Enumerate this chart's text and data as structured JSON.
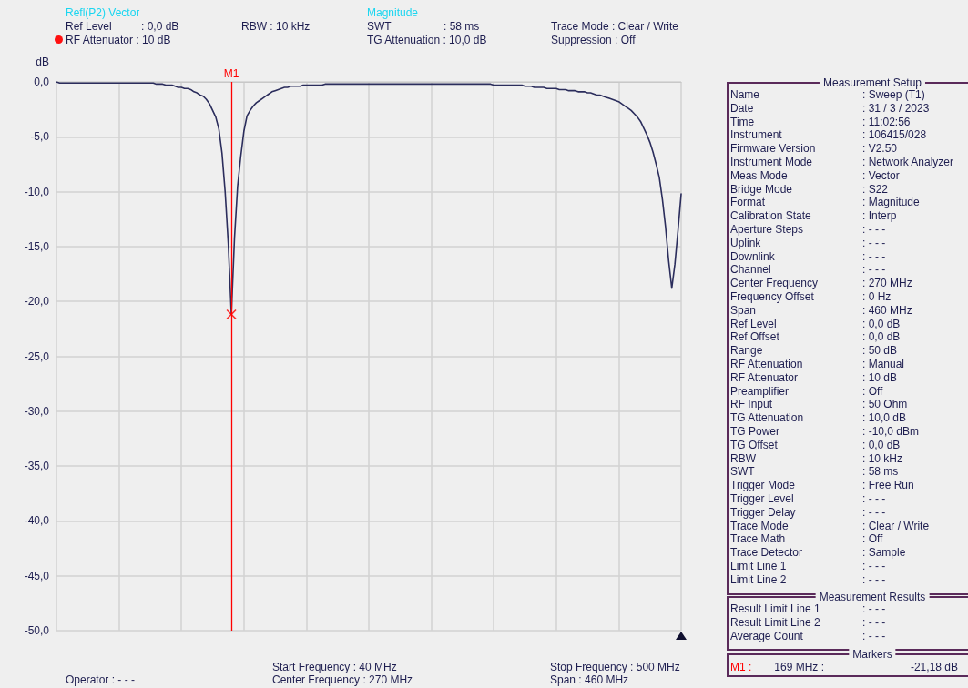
{
  "chart_data": {
    "type": "line",
    "ylabel": "dB",
    "categories": [
      null,
      null,
      null,
      null,
      null,
      null,
      null,
      null,
      null,
      null,
      null,
      null,
      null,
      null,
      null,
      null,
      null,
      null,
      null,
      null,
      null,
      null,
      null,
      null,
      null,
      null,
      null,
      null,
      null,
      null,
      null,
      null,
      null,
      null,
      null,
      null,
      null,
      null,
      null,
      null,
      null,
      null,
      null,
      null,
      null,
      null,
      null,
      null,
      null,
      null,
      null,
      null,
      null,
      null,
      null,
      null,
      null,
      null,
      null,
      null,
      null,
      null,
      null,
      null,
      null,
      null,
      null,
      null,
      null,
      null,
      null,
      null,
      null,
      null,
      null,
      null,
      null,
      null,
      null,
      null,
      null,
      null,
      null,
      null,
      null,
      null,
      null,
      null,
      null,
      null,
      null,
      null,
      null,
      null,
      null,
      null,
      null,
      null,
      null,
      null,
      null,
      null,
      null,
      null,
      null,
      null,
      null,
      null,
      null,
      null,
      null,
      null,
      null,
      null,
      null,
      null,
      null,
      null,
      null,
      null,
      null,
      null,
      null,
      null,
      null,
      null,
      null,
      null,
      null,
      null,
      null,
      null,
      null,
      null,
      null,
      null,
      null,
      null,
      null,
      null,
      null,
      null,
      null,
      null,
      null,
      null,
      null,
      null,
      null,
      null,
      null,
      null,
      null,
      null,
      null,
      null,
      null,
      null,
      null,
      null,
      null,
      null,
      null,
      null,
      null,
      null,
      null,
      null,
      null,
      null,
      null,
      null,
      null,
      null,
      null,
      null,
      null,
      null,
      null,
      null,
      null,
      null,
      null,
      null,
      null,
      null,
      null,
      null,
      null,
      null,
      null,
      null,
      null,
      null,
      null,
      null,
      null,
      null,
      null,
      null,
      null
    ],
    "series": [
      {
        "color": "#2b2d5c",
        "values": [
          0,
          -0.1,
          -0.1,
          -0.1,
          -0.1,
          -0.1,
          -0.1,
          -0.1,
          -0.1,
          -0.1,
          -0.1,
          -0.1,
          -0.1,
          -0.1,
          -0.1,
          -0.1,
          -0.1,
          -0.1,
          -0.1,
          -0.1,
          -0.1,
          -0.1,
          -0.1,
          -0.1,
          -0.1,
          -0.1,
          -0.1,
          -0.1,
          -0.1,
          -0.1,
          -0.1,
          -0.1,
          -0.2,
          -0.2,
          -0.2,
          -0.3,
          -0.3,
          -0.3,
          -0.4,
          -0.5,
          -0.5,
          -0.6,
          -0.6,
          -0.7,
          -0.9,
          -1,
          -1.2,
          -1.3,
          -1.6,
          -2,
          -2.6,
          -3.2,
          -4.3,
          -6.5,
          -10,
          -14.7,
          -21.18,
          -14.2,
          -9.5,
          -6.8,
          -4.5,
          -3.1,
          -2.6,
          -2.2,
          -1.9,
          -1.7,
          -1.5,
          -1.3,
          -1.1,
          -0.9,
          -0.8,
          -0.7,
          -0.6,
          -0.5,
          -0.5,
          -0.4,
          -0.4,
          -0.4,
          -0.4,
          -0.3,
          -0.3,
          -0.3,
          -0.3,
          -0.3,
          -0.3,
          -0.3,
          -0.2,
          -0.2,
          -0.2,
          -0.2,
          -0.2,
          -0.2,
          -0.2,
          -0.2,
          -0.2,
          -0.2,
          -0.2,
          -0.2,
          -0.2,
          -0.2,
          -0.2,
          -0.2,
          -0.2,
          -0.2,
          -0.2,
          -0.2,
          -0.2,
          -0.2,
          -0.2,
          -0.2,
          -0.2,
          -0.2,
          -0.2,
          -0.2,
          -0.2,
          -0.2,
          -0.2,
          -0.2,
          -0.2,
          -0.2,
          -0.2,
          -0.2,
          -0.2,
          -0.2,
          -0.2,
          -0.2,
          -0.2,
          -0.2,
          -0.2,
          -0.2,
          -0.2,
          -0.2,
          -0.2,
          -0.2,
          -0.2,
          -0.2,
          -0.2,
          -0.2,
          -0.2,
          -0.2,
          -0.3,
          -0.3,
          -0.3,
          -0.3,
          -0.3,
          -0.3,
          -0.3,
          -0.3,
          -0.3,
          -0.3,
          -0.4,
          -0.4,
          -0.4,
          -0.5,
          -0.5,
          -0.5,
          -0.5,
          -0.6,
          -0.6,
          -0.6,
          -0.6,
          -0.7,
          -0.7,
          -0.7,
          -0.8,
          -0.8,
          -0.8,
          -0.9,
          -0.9,
          -0.9,
          -1,
          -1,
          -1.1,
          -1.2,
          -1.2,
          -1.3,
          -1.4,
          -1.5,
          -1.6,
          -1.7,
          -1.8,
          -2,
          -2.2,
          -2.4,
          -2.6,
          -2.9,
          -3.2,
          -3.6,
          -4.2,
          -4.8,
          -5.5,
          -6.4,
          -7.5,
          -8.7,
          -10.7,
          -13.2,
          -16.3,
          -18.8,
          -16.6,
          -13.5,
          -10.2
        ]
      },
      {
        "type": "scatter",
        "name": "M1",
        "color": "#ff0000",
        "marker": "cross",
        "values": [
          null,
          null,
          null,
          null,
          null,
          null,
          null,
          null,
          null,
          null,
          null,
          null,
          null,
          null,
          null,
          null,
          null,
          null,
          null,
          null,
          null,
          null,
          null,
          null,
          null,
          null,
          null,
          null,
          null,
          null,
          null,
          null,
          null,
          null,
          null,
          null,
          null,
          null,
          null,
          null,
          null,
          null,
          null,
          null,
          null,
          null,
          null,
          null,
          null,
          null,
          null,
          null,
          null,
          null,
          null,
          null,
          -21.18,
          null,
          null,
          null,
          null,
          null,
          null,
          null,
          null,
          null,
          null,
          null,
          null,
          null,
          null,
          null,
          null,
          null,
          null,
          null,
          null,
          null,
          null,
          null,
          null,
          null,
          null,
          null,
          null,
          null,
          null,
          null,
          null,
          null,
          null,
          null,
          null,
          null,
          null,
          null,
          null,
          null,
          null,
          null,
          null,
          null,
          null,
          null,
          null,
          null,
          null,
          null,
          null,
          null,
          null,
          null,
          null,
          null,
          null,
          null,
          null,
          null,
          null,
          null,
          null,
          null,
          null,
          null,
          null,
          null,
          null,
          null,
          null,
          null,
          null,
          null,
          null,
          null,
          null,
          null,
          null,
          null,
          null,
          null,
          null,
          null,
          null,
          null,
          null,
          null,
          null,
          null,
          null,
          null,
          null,
          null,
          null,
          null,
          null,
          null,
          null,
          null,
          null,
          null,
          null,
          null,
          null,
          null,
          null,
          null,
          null,
          null,
          null,
          null,
          null,
          null,
          null,
          null,
          null,
          null,
          null,
          null,
          null,
          null,
          null,
          null,
          null,
          null,
          null,
          null,
          null,
          null,
          null,
          null,
          null,
          null,
          null,
          null,
          null,
          null,
          null,
          null,
          null,
          null,
          null
        ]
      }
    ],
    "ylim": [
      -50,
      0
    ],
    "yticks": [
      {
        "value": -50,
        "label": "-50,0"
      },
      {
        "value": -45,
        "label": "-45,0"
      },
      {
        "value": -40,
        "label": "-40,0"
      },
      {
        "value": -35,
        "label": "-35,0"
      },
      {
        "value": -30,
        "label": "-30,0"
      },
      {
        "value": -25,
        "label": "-25,0"
      },
      {
        "value": -20,
        "label": "-20,0"
      },
      {
        "value": -15,
        "label": "-15,0"
      },
      {
        "value": -10,
        "label": "-10,0"
      },
      {
        "value": -5,
        "label": "-5,0"
      },
      {
        "value": 0,
        "label": "0,0"
      }
    ],
    "tick_labels": "y",
    "grid": true,
    "marker": "none",
    "line_style": "solid",
    "annotations": [
      "Refl(P2) Vector",
      "Ref Level",
      ": 0,0 dB",
      "RF Attenuator : 10 dB",
      "RBW : 10 kHz",
      "Magnitude",
      "SWT",
      ": 58 ms",
      "TG Attenuation : 10,0 dB",
      "Trace Mode : Clear / Write",
      "Suppression : Off",
      "Start Frequency : 40 MHz",
      "Center Frequency : 270 MHz",
      "Stop Frequency : 500 MHz",
      "Span : 460 MHz",
      "Operator : - - -",
      "Measurement Setup",
      "Name",
      ": Sweep (T1)",
      "Date",
      ": 31 / 3 / 2023",
      "Time",
      ": 11:02:56",
      "Instrument",
      ": 106415/028",
      "Firmware Version",
      ": V2.50",
      "Instrument Mode",
      ": Network Analyzer",
      "Meas Mode",
      ": Vector",
      "Bridge Mode",
      ": S22",
      "Format",
      ": Magnitude",
      "Calibration State",
      ": Interp",
      "Aperture Steps",
      ": - - -",
      "Uplink",
      ": - - -",
      "Downlink",
      ": - - -",
      "Channel",
      ": - - -",
      "Center Frequency",
      ": 270 MHz",
      "Frequency Offset",
      ": 0 Hz",
      "Span",
      ": 460 MHz",
      "Ref Level",
      ": 0,0 dB",
      "Ref Offset",
      ": 0,0 dB",
      "Range",
      ": 50 dB",
      "RF Attenuation",
      ": Manual",
      "RF Attenuator",
      ": 10 dB",
      "Preamplifier",
      ": Off",
      "RF Input",
      ": 50 Ohm",
      "TG Attenuation",
      ": 10,0 dB",
      "TG Power",
      ": -10,0 dBm",
      "TG Offset",
      ": 0,0 dB",
      "RBW",
      ": 10 kHz",
      "SWT",
      ": 58 ms",
      "Trigger Mode",
      ": Free Run",
      "Trigger Level",
      ": - - -",
      "Trigger Delay",
      ": - - -",
      "Trace Mode",
      ": Clear / Write",
      "Trace Math",
      ": Off",
      "Trace Detector",
      ": Sample",
      "Limit Line 1",
      ": - - -",
      "Limit Line 2",
      ": - - -",
      "Measurement Results",
      "Result Limit Line 1",
      ": - - -",
      "Result Limit Line 2",
      ": - - -",
      "Average Count",
      ": - - -",
      "Markers",
      "M1 :",
      "169 MHz :",
      "-21,18 dB"
    ]
  }
}
